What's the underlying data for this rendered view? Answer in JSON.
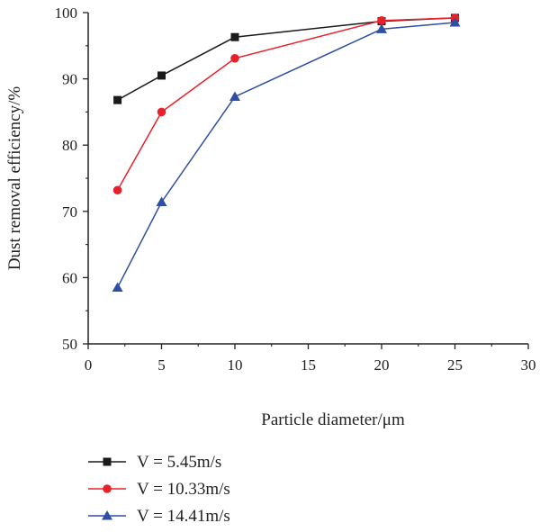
{
  "chart_data": {
    "type": "line",
    "title": "",
    "xlabel": "Particle diameter/μm",
    "ylabel": "Dust removal efficiency/%",
    "xlim": [
      0,
      30
    ],
    "ylim": [
      50,
      100
    ],
    "xticks": [
      0,
      5,
      10,
      15,
      20,
      25,
      30
    ],
    "yticks": [
      50,
      60,
      70,
      80,
      90,
      100
    ],
    "grid": false,
    "legend_position": "bottom-left, below plot",
    "series": [
      {
        "name": "V = 5.45m/s",
        "color": "#1a1a1a",
        "marker": "square",
        "x": [
          2,
          5,
          10,
          20,
          25
        ],
        "y": [
          86.8,
          90.5,
          96.3,
          98.7,
          99.2
        ]
      },
      {
        "name": "V = 10.33m/s",
        "color": "#e8202a",
        "marker": "circle",
        "x": [
          2,
          5,
          10,
          20,
          25
        ],
        "y": [
          73.2,
          85.0,
          93.1,
          98.8,
          99.2
        ]
      },
      {
        "name": "V = 14.41m/s",
        "color": "#2e4fa3",
        "marker": "triangle",
        "x": [
          2,
          5,
          10,
          20,
          25
        ],
        "y": [
          58.5,
          71.4,
          87.3,
          97.5,
          98.5
        ]
      }
    ]
  }
}
